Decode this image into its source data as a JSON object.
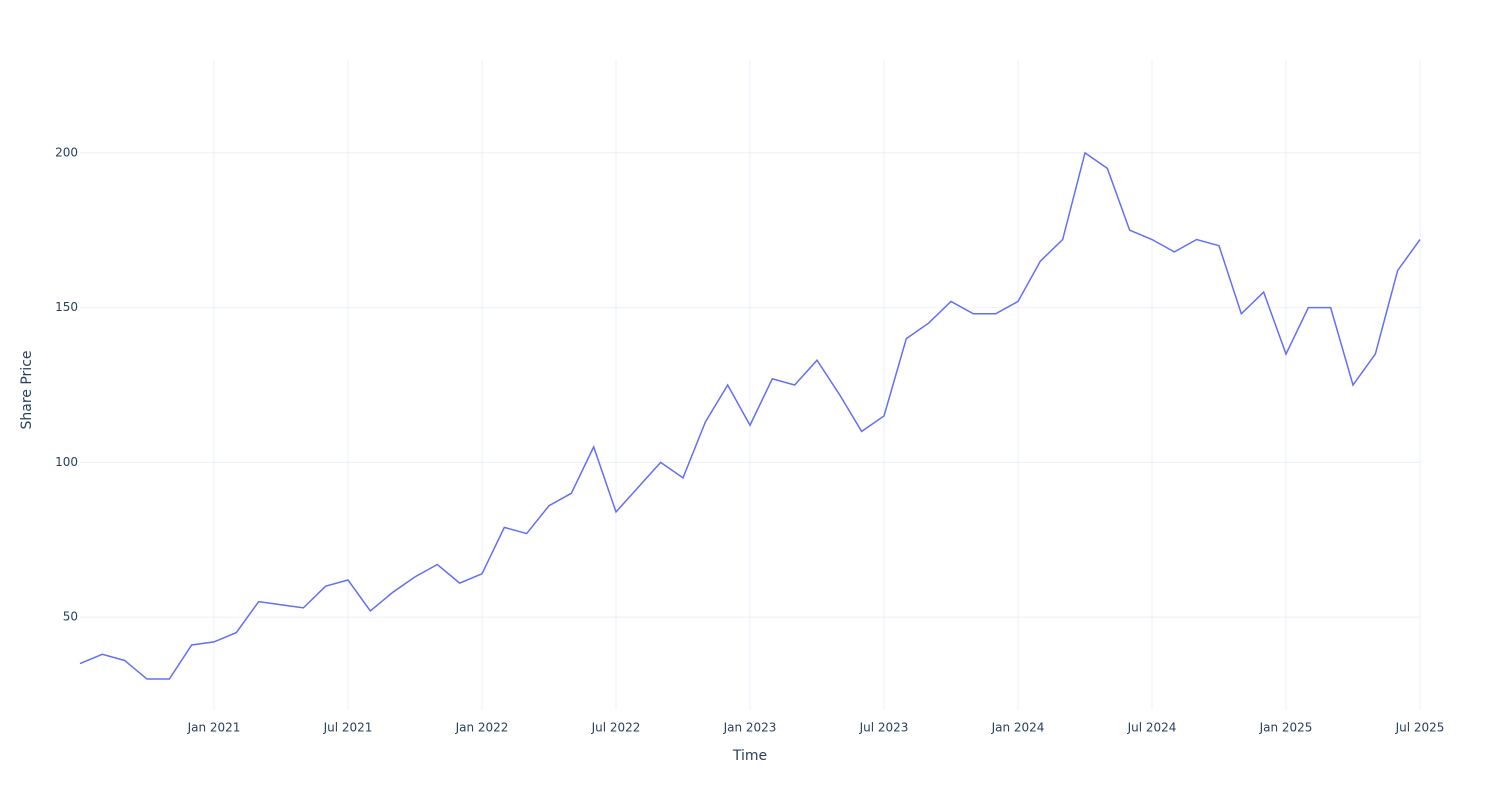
{
  "chart_data": {
    "type": "line",
    "x_title": "Time",
    "y_title": "Share Price",
    "x": [
      "2020-07",
      "2020-08",
      "2020-09",
      "2020-10",
      "2020-11",
      "2020-12",
      "2021-01",
      "2021-02",
      "2021-03",
      "2021-04",
      "2021-05",
      "2021-06",
      "2021-07",
      "2021-08",
      "2021-09",
      "2021-10",
      "2021-11",
      "2021-12",
      "2022-01",
      "2022-02",
      "2022-03",
      "2022-04",
      "2022-05",
      "2022-06",
      "2022-07",
      "2022-08",
      "2022-09",
      "2022-10",
      "2022-11",
      "2022-12",
      "2023-01",
      "2023-02",
      "2023-03",
      "2023-04",
      "2023-05",
      "2023-06",
      "2023-07",
      "2023-08",
      "2023-09",
      "2023-10",
      "2023-11",
      "2023-12",
      "2024-01",
      "2024-02",
      "2024-03",
      "2024-04",
      "2024-05",
      "2024-06",
      "2024-07",
      "2024-08",
      "2024-09",
      "2024-10",
      "2024-11",
      "2024-12",
      "2025-01",
      "2025-02",
      "2025-03",
      "2025-04",
      "2025-05",
      "2025-06",
      "2025-07"
    ],
    "series": [
      {
        "color": "#636efa",
        "values": [
          35,
          38,
          36,
          30,
          30,
          41,
          42,
          45,
          55,
          54,
          53,
          60,
          62,
          52,
          58,
          63,
          67,
          61,
          64,
          79,
          77,
          86,
          90,
          105,
          84,
          92,
          100,
          95,
          113,
          125,
          112,
          127,
          125,
          133,
          122,
          110,
          115,
          140,
          145,
          152,
          148,
          148,
          152,
          165,
          172,
          200,
          195,
          175,
          172,
          168,
          172,
          170,
          148,
          155,
          135,
          150,
          150,
          125,
          135,
          162,
          172
        ]
      }
    ],
    "xlim": [
      "2020-07",
      "2025-07"
    ],
    "xticks": [
      {
        "value": "2021-01",
        "label": "Jan 2021"
      },
      {
        "value": "2021-07",
        "label": "Jul 2021"
      },
      {
        "value": "2022-01",
        "label": "Jan 2022"
      },
      {
        "value": "2022-07",
        "label": "Jul 2022"
      },
      {
        "value": "2023-01",
        "label": "Jan 2023"
      },
      {
        "value": "2023-07",
        "label": "Jul 2023"
      },
      {
        "value": "2024-01",
        "label": "Jan 2024"
      },
      {
        "value": "2024-07",
        "label": "Jul 2024"
      },
      {
        "value": "2025-01",
        "label": "Jan 2025"
      },
      {
        "value": "2025-07",
        "label": "Jul 2025"
      }
    ],
    "ylim": [
      20,
      230
    ],
    "yticks": [
      50,
      100,
      150,
      200
    ],
    "grid": true
  }
}
